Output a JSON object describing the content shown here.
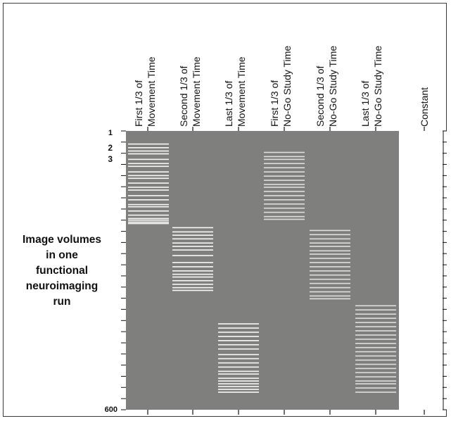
{
  "columns": [
    {
      "line1": "First 1/3 of",
      "line2": "Movement Time",
      "bars": [
        0.045,
        0.058,
        0.07,
        0.08,
        0.1,
        0.115,
        0.125,
        0.145,
        0.158,
        0.168,
        0.185,
        0.2,
        0.21,
        0.23,
        0.245,
        0.262,
        0.27,
        0.285,
        0.3,
        0.312,
        0.318,
        0.325,
        0.33
      ]
    },
    {
      "line1": "Second 1/3 of",
      "line2": "Movement Time",
      "bars": [
        0.345,
        0.36,
        0.372,
        0.385,
        0.4,
        0.412,
        0.425,
        0.445,
        0.47,
        0.485,
        0.5,
        0.512,
        0.522,
        0.535,
        0.548,
        0.56,
        0.57
      ]
    },
    {
      "line1": "Last 1/3 of",
      "line2": "Movement Time",
      "bars": [
        0.69,
        0.705,
        0.72,
        0.735,
        0.75,
        0.765,
        0.78,
        0.8,
        0.815,
        0.83,
        0.845,
        0.86,
        0.87,
        0.885,
        0.895,
        0.905,
        0.915,
        0.925,
        0.935
      ]
    },
    {
      "line1": "First 1/3 of",
      "line2": "No-Go Study Time",
      "bars": [
        0.075,
        0.09,
        0.1,
        0.115,
        0.13,
        0.145,
        0.16,
        0.175,
        0.19,
        0.2,
        0.215,
        0.23,
        0.245,
        0.26,
        0.275,
        0.29,
        0.305,
        0.315
      ]
    },
    {
      "line1": "Second 1/3 of",
      "line2": "No-Go Study Time",
      "bars": [
        0.355,
        0.37,
        0.385,
        0.4,
        0.412,
        0.428,
        0.44,
        0.455,
        0.47,
        0.485,
        0.5,
        0.515,
        0.53,
        0.545,
        0.56,
        0.575,
        0.59,
        0.6
      ]
    },
    {
      "line1": "Last 1/3 of",
      "line2": "No-Go Study Time",
      "bars": [
        0.625,
        0.64,
        0.655,
        0.67,
        0.685,
        0.7,
        0.715,
        0.73,
        0.745,
        0.76,
        0.775,
        0.79,
        0.805,
        0.82,
        0.835,
        0.85,
        0.865,
        0.88,
        0.895,
        0.905,
        0.92,
        0.935
      ]
    },
    {
      "line1": "",
      "line2": "Constant",
      "bars": []
    }
  ],
  "row_labels": {
    "first": "1",
    "second": "2",
    "third": "3",
    "last": "600"
  },
  "side_label": [
    "Image volumes",
    "in one",
    "functional",
    "neuroimaging",
    "run"
  ],
  "colors": {
    "matrix": "#7f7f7e",
    "bar": "#ffffff",
    "constant": "#ffffff"
  }
}
